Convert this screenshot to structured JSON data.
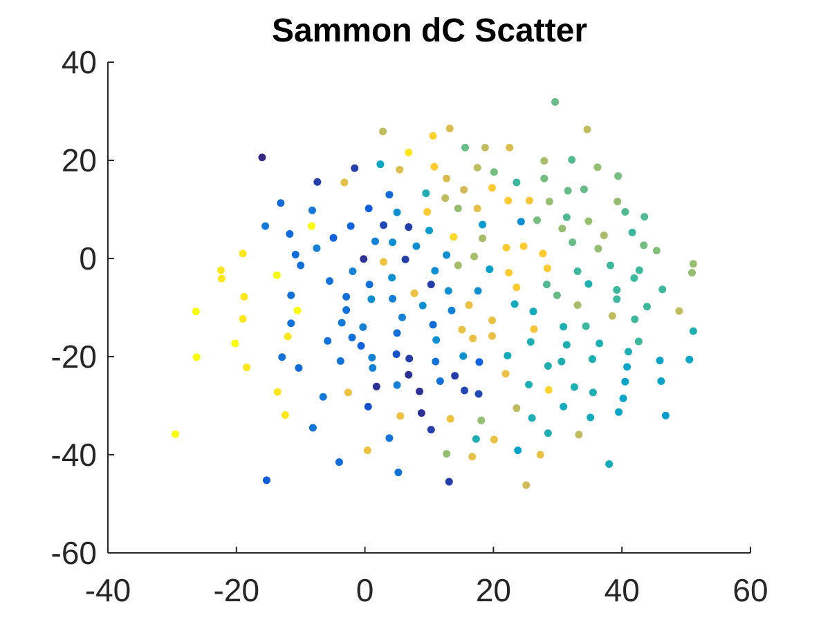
{
  "chart_data": {
    "type": "scatter",
    "title": "Sammon dC Scatter",
    "xlabel": "",
    "ylabel": "",
    "xlim": [
      -40,
      60
    ],
    "ylim": [
      -60,
      40
    ],
    "xticks": [
      -40,
      -20,
      0,
      20,
      40,
      60
    ],
    "yticks": [
      -60,
      -40,
      -20,
      0,
      20,
      40
    ],
    "xtick_labels": [
      "-40",
      "-20",
      "0",
      "20",
      "40",
      "60"
    ],
    "ytick_labels": [
      "-60",
      "-40",
      "-20",
      "0",
      "20",
      "40"
    ],
    "grid": false,
    "legend": "none",
    "colormap": [
      "#352a87",
      "#0f5cdd",
      "#1481d6",
      "#06a4ca",
      "#2eb7a4",
      "#87bf77",
      "#d1bb59",
      "#fec832",
      "#f9fb0e"
    ],
    "points": [
      {
        "x": -29.5,
        "y": -35.8,
        "c": 1.0
      },
      {
        "x": -26.3,
        "y": -10.8,
        "c": 1.0
      },
      {
        "x": -26.2,
        "y": -20.1,
        "c": 1.0
      },
      {
        "x": -22.4,
        "y": -2.4,
        "c": 0.95
      },
      {
        "x": -22.3,
        "y": -4.1,
        "c": 0.95
      },
      {
        "x": -20.2,
        "y": -17.3,
        "c": 1.0
      },
      {
        "x": -19.0,
        "y": 1.0,
        "c": 0.95
      },
      {
        "x": -19.0,
        "y": -12.3,
        "c": 0.95
      },
      {
        "x": -18.8,
        "y": -7.8,
        "c": 0.95
      },
      {
        "x": -18.4,
        "y": -22.2,
        "c": 0.95
      },
      {
        "x": -16.0,
        "y": 20.6,
        "c": 0.0
      },
      {
        "x": -15.5,
        "y": 6.6,
        "c": 0.22
      },
      {
        "x": -15.3,
        "y": -45.2,
        "c": 0.13
      },
      {
        "x": -13.7,
        "y": -3.4,
        "c": 1.0
      },
      {
        "x": -13.6,
        "y": -27.2,
        "c": 0.95
      },
      {
        "x": -13.1,
        "y": 11.3,
        "c": 0.18
      },
      {
        "x": -12.9,
        "y": -20.1,
        "c": 0.2
      },
      {
        "x": -12.4,
        "y": -31.9,
        "c": 0.95
      },
      {
        "x": -12.0,
        "y": -15.9,
        "c": 0.95
      },
      {
        "x": -11.7,
        "y": 5.0,
        "c": 0.18
      },
      {
        "x": -11.5,
        "y": -7.5,
        "c": 0.2
      },
      {
        "x": -11.5,
        "y": -13.2,
        "c": 0.2
      },
      {
        "x": -10.8,
        "y": 0.8,
        "c": 0.18
      },
      {
        "x": -10.5,
        "y": -10.6,
        "c": 1.0
      },
      {
        "x": -10.3,
        "y": -22.3,
        "c": 0.18
      },
      {
        "x": -10.0,
        "y": -1.4,
        "c": 0.2
      },
      {
        "x": -8.3,
        "y": 6.6,
        "c": 1.0
      },
      {
        "x": -8.2,
        "y": 9.8,
        "c": 0.22
      },
      {
        "x": -8.1,
        "y": -34.5,
        "c": 0.2
      },
      {
        "x": -7.5,
        "y": 2.1,
        "c": 0.25
      },
      {
        "x": -7.4,
        "y": 15.6,
        "c": 0.05
      },
      {
        "x": -6.5,
        "y": -28.2,
        "c": 0.22
      },
      {
        "x": -5.8,
        "y": -16.8,
        "c": 0.2
      },
      {
        "x": -5.5,
        "y": -4.6,
        "c": 0.2
      },
      {
        "x": -4.9,
        "y": 4.2,
        "c": 0.15
      },
      {
        "x": -4.0,
        "y": -41.5,
        "c": 0.18
      },
      {
        "x": -3.8,
        "y": -20.9,
        "c": 0.2
      },
      {
        "x": -3.6,
        "y": -13.1,
        "c": 0.22
      },
      {
        "x": -3.2,
        "y": 15.5,
        "c": 0.8
      },
      {
        "x": -2.9,
        "y": -7.8,
        "c": 0.2
      },
      {
        "x": -2.9,
        "y": -10.5,
        "c": 0.2
      },
      {
        "x": -2.6,
        "y": -27.3,
        "c": 0.83
      },
      {
        "x": -2.2,
        "y": 6.6,
        "c": 0.15
      },
      {
        "x": -2.0,
        "y": -16.1,
        "c": 0.2
      },
      {
        "x": -1.9,
        "y": -2.6,
        "c": 0.25
      },
      {
        "x": -1.6,
        "y": 18.4,
        "c": 0.05
      },
      {
        "x": -0.6,
        "y": -17.8,
        "c": 0.15
      },
      {
        "x": -0.3,
        "y": -14.0,
        "c": 0.25
      },
      {
        "x": -0.2,
        "y": -0.1,
        "c": 0.02
      },
      {
        "x": 0.4,
        "y": -39.1,
        "c": 0.83
      },
      {
        "x": 0.5,
        "y": -30.2,
        "c": 0.1
      },
      {
        "x": 0.6,
        "y": 10.2,
        "c": 0.13
      },
      {
        "x": 0.7,
        "y": -5.3,
        "c": 0.2
      },
      {
        "x": 1.0,
        "y": -8.3,
        "c": 0.3
      },
      {
        "x": 1.1,
        "y": -20.2,
        "c": 0.25
      },
      {
        "x": 1.2,
        "y": -22.3,
        "c": 0.25
      },
      {
        "x": 1.6,
        "y": 3.5,
        "c": 0.25
      },
      {
        "x": 1.8,
        "y": -26.1,
        "c": 0.02
      },
      {
        "x": 2.4,
        "y": 19.2,
        "c": 0.4
      },
      {
        "x": 2.8,
        "y": 25.9,
        "c": 0.72
      },
      {
        "x": 2.9,
        "y": -0.7,
        "c": 0.83
      },
      {
        "x": 2.9,
        "y": 6.8,
        "c": 0.07
      },
      {
        "x": 3.8,
        "y": 13.0,
        "c": 0.18
      },
      {
        "x": 3.8,
        "y": -36.6,
        "c": 0.2
      },
      {
        "x": 4.2,
        "y": -3.9,
        "c": 0.3
      },
      {
        "x": 4.3,
        "y": 3.3,
        "c": 0.3
      },
      {
        "x": 4.3,
        "y": -8.2,
        "c": 0.25
      },
      {
        "x": 4.9,
        "y": -19.5,
        "c": 0.1
      },
      {
        "x": 5.0,
        "y": -15.2,
        "c": 0.2
      },
      {
        "x": 5.0,
        "y": 9.4,
        "c": 0.3
      },
      {
        "x": 5.0,
        "y": -25.8,
        "c": 0.25
      },
      {
        "x": 5.2,
        "y": -43.6,
        "c": 0.2
      },
      {
        "x": 5.4,
        "y": 18.1,
        "c": 0.78
      },
      {
        "x": 5.5,
        "y": -32.1,
        "c": 0.83
      },
      {
        "x": 5.8,
        "y": -12.0,
        "c": 0.25
      },
      {
        "x": 6.3,
        "y": -0.2,
        "c": 0.05
      },
      {
        "x": 6.8,
        "y": -23.7,
        "c": 0.02
      },
      {
        "x": 6.8,
        "y": 6.4,
        "c": 0.05
      },
      {
        "x": 6.8,
        "y": 21.6,
        "c": 0.95
      },
      {
        "x": 6.9,
        "y": -20.4,
        "c": 0.05
      },
      {
        "x": 7.7,
        "y": -7.1,
        "c": 0.83
      },
      {
        "x": 8.0,
        "y": 2.5,
        "c": 0.3
      },
      {
        "x": 8.5,
        "y": -27.1,
        "c": 0.02
      },
      {
        "x": 8.8,
        "y": -31.5,
        "c": 0.02
      },
      {
        "x": 9.0,
        "y": -9.6,
        "c": 0.3
      },
      {
        "x": 9.5,
        "y": 13.3,
        "c": 0.45
      },
      {
        "x": 9.7,
        "y": 9.5,
        "c": 0.88
      },
      {
        "x": 10.0,
        "y": 5.7,
        "c": 0.35
      },
      {
        "x": 10.3,
        "y": -34.9,
        "c": 0.05
      },
      {
        "x": 10.3,
        "y": -5.3,
        "c": 0.05
      },
      {
        "x": 10.6,
        "y": 25.0,
        "c": 0.9
      },
      {
        "x": 10.6,
        "y": -13.5,
        "c": 0.18
      },
      {
        "x": 10.8,
        "y": 18.7,
        "c": 0.88
      },
      {
        "x": 10.9,
        "y": -2.5,
        "c": 0.3
      },
      {
        "x": 11.0,
        "y": -21.0,
        "c": 0.2
      },
      {
        "x": 11.1,
        "y": -16.6,
        "c": 0.3
      },
      {
        "x": 11.7,
        "y": -25.0,
        "c": 0.2
      },
      {
        "x": 12.5,
        "y": 12.3,
        "c": 0.72
      },
      {
        "x": 12.7,
        "y": 16.3,
        "c": 0.78
      },
      {
        "x": 12.7,
        "y": 0.7,
        "c": 0.3
      },
      {
        "x": 12.7,
        "y": -39.8,
        "c": 0.65
      },
      {
        "x": 13.0,
        "y": -6.6,
        "c": 0.3
      },
      {
        "x": 13.1,
        "y": -45.5,
        "c": 0.05
      },
      {
        "x": 13.2,
        "y": 26.5,
        "c": 0.78
      },
      {
        "x": 13.3,
        "y": -32.7,
        "c": 0.83
      },
      {
        "x": 13.5,
        "y": -10.6,
        "c": 0.25
      },
      {
        "x": 13.8,
        "y": 4.4,
        "c": 0.92
      },
      {
        "x": 14.0,
        "y": -23.9,
        "c": 0.05
      },
      {
        "x": 14.5,
        "y": 10.2,
        "c": 0.65
      },
      {
        "x": 14.5,
        "y": -1.4,
        "c": 0.68
      },
      {
        "x": 15.1,
        "y": -14.5,
        "c": 0.82
      },
      {
        "x": 15.3,
        "y": -19.9,
        "c": 0.3
      },
      {
        "x": 15.4,
        "y": 14.0,
        "c": 0.75
      },
      {
        "x": 15.5,
        "y": -26.9,
        "c": 0.07
      },
      {
        "x": 15.6,
        "y": 22.6,
        "c": 0.58
      },
      {
        "x": 16.2,
        "y": -9.5,
        "c": 0.82
      },
      {
        "x": 16.7,
        "y": -40.4,
        "c": 0.8
      },
      {
        "x": 16.8,
        "y": -16.3,
        "c": 0.82
      },
      {
        "x": 17.0,
        "y": 0.4,
        "c": 0.68
      },
      {
        "x": 17.3,
        "y": -36.8,
        "c": 0.45
      },
      {
        "x": 17.5,
        "y": 10.2,
        "c": 0.8
      },
      {
        "x": 17.5,
        "y": 18.5,
        "c": 0.72
      },
      {
        "x": 17.6,
        "y": -6.6,
        "c": 0.3
      },
      {
        "x": 17.7,
        "y": -27.6,
        "c": 0.07
      },
      {
        "x": 17.8,
        "y": -21.1,
        "c": 0.15
      },
      {
        "x": 18.1,
        "y": -33.0,
        "c": 0.65
      },
      {
        "x": 18.3,
        "y": 4.1,
        "c": 0.68
      },
      {
        "x": 18.3,
        "y": 6.9,
        "c": 0.35
      },
      {
        "x": 18.7,
        "y": 22.6,
        "c": 0.72
      },
      {
        "x": 19.4,
        "y": -2.2,
        "c": 0.35
      },
      {
        "x": 19.8,
        "y": -15.8,
        "c": 0.82
      },
      {
        "x": 19.8,
        "y": 14.4,
        "c": 0.88
      },
      {
        "x": 19.8,
        "y": -12.6,
        "c": 0.82
      },
      {
        "x": 20.1,
        "y": -36.9,
        "c": 0.82
      },
      {
        "x": 20.1,
        "y": 17.6,
        "c": 0.6
      },
      {
        "x": 21.9,
        "y": -23.5,
        "c": 0.82
      },
      {
        "x": 22.0,
        "y": 2.2,
        "c": 0.88
      },
      {
        "x": 22.2,
        "y": -19.8,
        "c": 0.42
      },
      {
        "x": 22.3,
        "y": 11.8,
        "c": 0.88
      },
      {
        "x": 22.4,
        "y": -2.9,
        "c": 0.88
      },
      {
        "x": 22.5,
        "y": 22.6,
        "c": 0.78
      },
      {
        "x": 23.3,
        "y": -9.3,
        "c": 0.42
      },
      {
        "x": 23.6,
        "y": -5.9,
        "c": 0.88
      },
      {
        "x": 23.6,
        "y": -30.5,
        "c": 0.72
      },
      {
        "x": 23.6,
        "y": 15.5,
        "c": 0.52
      },
      {
        "x": 23.8,
        "y": -39.1,
        "c": 0.38
      },
      {
        "x": 24.3,
        "y": 7.5,
        "c": 0.3
      },
      {
        "x": 24.7,
        "y": 2.5,
        "c": 0.88
      },
      {
        "x": 25.1,
        "y": -46.2,
        "c": 0.75
      },
      {
        "x": 25.5,
        "y": -25.7,
        "c": 0.45
      },
      {
        "x": 25.6,
        "y": 11.8,
        "c": 0.85
      },
      {
        "x": 25.8,
        "y": -17.0,
        "c": 0.45
      },
      {
        "x": 26.0,
        "y": -32.5,
        "c": 0.45
      },
      {
        "x": 26.2,
        "y": -10.8,
        "c": 0.42
      },
      {
        "x": 26.3,
        "y": -14.4,
        "c": 0.85
      },
      {
        "x": 26.8,
        "y": 7.8,
        "c": 0.6
      },
      {
        "x": 27.3,
        "y": -40.0,
        "c": 0.82
      },
      {
        "x": 27.7,
        "y": 1.0,
        "c": 0.88
      },
      {
        "x": 27.9,
        "y": 16.3,
        "c": 0.6
      },
      {
        "x": 27.9,
        "y": 19.9,
        "c": 0.68
      },
      {
        "x": 28.3,
        "y": -5.3,
        "c": 0.55
      },
      {
        "x": 28.4,
        "y": -2.0,
        "c": 0.88
      },
      {
        "x": 28.5,
        "y": -21.9,
        "c": 0.45
      },
      {
        "x": 28.5,
        "y": -35.6,
        "c": 0.45
      },
      {
        "x": 28.6,
        "y": -26.8,
        "c": 0.9
      },
      {
        "x": 28.7,
        "y": 11.6,
        "c": 0.65
      },
      {
        "x": 29.6,
        "y": 31.9,
        "c": 0.58
      },
      {
        "x": 29.9,
        "y": -7.5,
        "c": 0.58
      },
      {
        "x": 30.6,
        "y": -21.0,
        "c": 0.45
      },
      {
        "x": 30.7,
        "y": 6.1,
        "c": 0.65
      },
      {
        "x": 30.9,
        "y": -13.9,
        "c": 0.45
      },
      {
        "x": 30.9,
        "y": -30.2,
        "c": 0.42
      },
      {
        "x": 31.4,
        "y": 8.4,
        "c": 0.55
      },
      {
        "x": 31.4,
        "y": -17.6,
        "c": 0.45
      },
      {
        "x": 31.6,
        "y": 13.8,
        "c": 0.58
      },
      {
        "x": 32.2,
        "y": 20.1,
        "c": 0.55
      },
      {
        "x": 32.3,
        "y": 3.3,
        "c": 0.58
      },
      {
        "x": 32.6,
        "y": -26.2,
        "c": 0.45
      },
      {
        "x": 33.1,
        "y": -2.6,
        "c": 0.52
      },
      {
        "x": 33.1,
        "y": -9.5,
        "c": 0.68
      },
      {
        "x": 33.3,
        "y": -35.9,
        "c": 0.72
      },
      {
        "x": 34.1,
        "y": 14.1,
        "c": 0.58
      },
      {
        "x": 34.4,
        "y": -13.8,
        "c": 0.52
      },
      {
        "x": 34.6,
        "y": 26.3,
        "c": 0.72
      },
      {
        "x": 34.8,
        "y": -5.2,
        "c": 0.45
      },
      {
        "x": 34.8,
        "y": 7.6,
        "c": 0.65
      },
      {
        "x": 35.1,
        "y": -32.4,
        "c": 0.42
      },
      {
        "x": 35.4,
        "y": -20.5,
        "c": 0.45
      },
      {
        "x": 35.5,
        "y": -27.3,
        "c": 0.45
      },
      {
        "x": 36.2,
        "y": 18.6,
        "c": 0.65
      },
      {
        "x": 36.3,
        "y": 2.0,
        "c": 0.65
      },
      {
        "x": 36.5,
        "y": -17.3,
        "c": 0.45
      },
      {
        "x": 37.2,
        "y": 4.7,
        "c": 0.68
      },
      {
        "x": 38.0,
        "y": -41.9,
        "c": 0.42
      },
      {
        "x": 38.2,
        "y": -1.4,
        "c": 0.52
      },
      {
        "x": 38.5,
        "y": -11.7,
        "c": 0.72
      },
      {
        "x": 39.2,
        "y": -8.3,
        "c": 0.52
      },
      {
        "x": 39.2,
        "y": -6.4,
        "c": 0.52
      },
      {
        "x": 39.3,
        "y": 11.6,
        "c": 0.65
      },
      {
        "x": 39.4,
        "y": 16.8,
        "c": 0.6
      },
      {
        "x": 39.5,
        "y": -31.3,
        "c": 0.38
      },
      {
        "x": 40.2,
        "y": -28.5,
        "c": 0.38
      },
      {
        "x": 40.5,
        "y": 9.5,
        "c": 0.55
      },
      {
        "x": 40.5,
        "y": -25.1,
        "c": 0.38
      },
      {
        "x": 40.8,
        "y": -22.1,
        "c": 0.38
      },
      {
        "x": 41.0,
        "y": -19.0,
        "c": 0.45
      },
      {
        "x": 41.6,
        "y": 5.3,
        "c": 0.52
      },
      {
        "x": 41.9,
        "y": -4.0,
        "c": 0.52
      },
      {
        "x": 42.0,
        "y": -12.4,
        "c": 0.52
      },
      {
        "x": 42.6,
        "y": -16.9,
        "c": 0.52
      },
      {
        "x": 42.7,
        "y": -2.4,
        "c": 0.52
      },
      {
        "x": 43.4,
        "y": 2.7,
        "c": 0.6
      },
      {
        "x": 43.5,
        "y": 8.5,
        "c": 0.55
      },
      {
        "x": 43.9,
        "y": -9.8,
        "c": 0.52
      },
      {
        "x": 45.4,
        "y": 1.6,
        "c": 0.62
      },
      {
        "x": 45.9,
        "y": -20.8,
        "c": 0.38
      },
      {
        "x": 46.1,
        "y": -25.0,
        "c": 0.38
      },
      {
        "x": 46.3,
        "y": -6.3,
        "c": 0.52
      },
      {
        "x": 46.8,
        "y": -32.0,
        "c": 0.35
      },
      {
        "x": 48.9,
        "y": -10.7,
        "c": 0.72
      },
      {
        "x": 50.5,
        "y": -20.6,
        "c": 0.38
      },
      {
        "x": 50.9,
        "y": -2.9,
        "c": 0.65
      },
      {
        "x": 51.1,
        "y": -14.8,
        "c": 0.45
      },
      {
        "x": 51.1,
        "y": -1.1,
        "c": 0.65
      }
    ]
  }
}
